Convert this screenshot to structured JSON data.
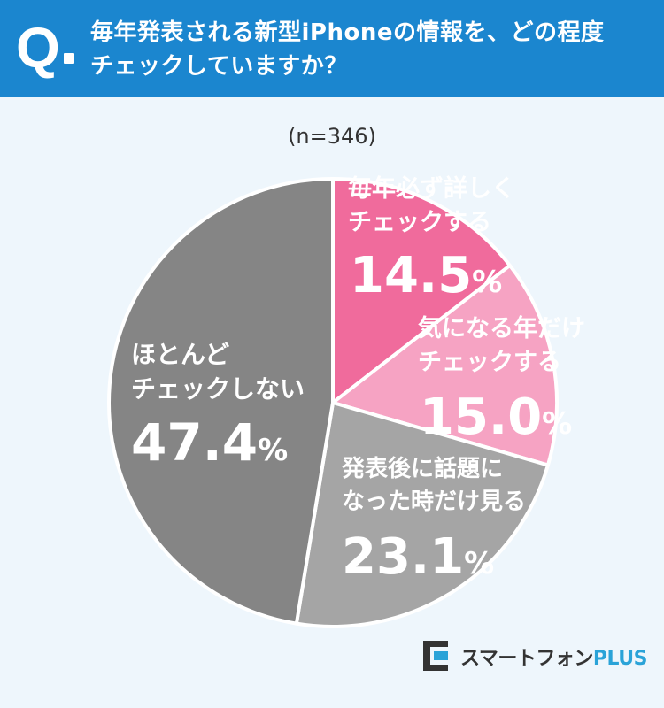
{
  "header": {
    "q_letter": "Q",
    "question": "毎年発表される新型iPhoneの情報を、どの程度\nチェックしていますか？",
    "background": "#1b86cf"
  },
  "sample_size": "(n=346)",
  "chart_data": {
    "type": "pie",
    "start_angle_deg": 0,
    "direction": "clockwise",
    "slices": [
      {
        "name": "毎年必ず詳しく\nチェックする",
        "value": 14.5,
        "label": "14.5",
        "color": "#f06b9c"
      },
      {
        "name": "気になる年だけ\nチェックする",
        "value": 15.0,
        "label": "15.0",
        "color": "#f6a3c3"
      },
      {
        "name": "発表後に話題に\nなった時だけ見る",
        "value": 23.1,
        "label": "23.1",
        "color": "#a5a5a5"
      },
      {
        "name": "ほとんど\nチェックしない",
        "value": 47.4,
        "label": "47.4",
        "color": "#858585"
      }
    ],
    "unit": "%"
  },
  "logo": {
    "main": "スマートフォン",
    "accent": "PLUS"
  }
}
